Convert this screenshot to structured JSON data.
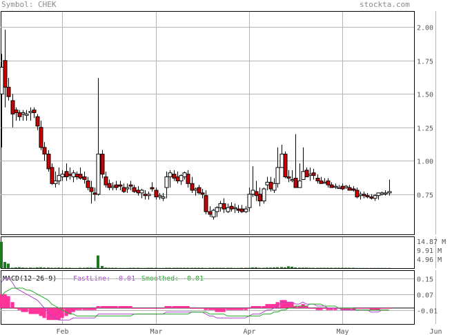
{
  "header": {
    "symbol_label": "Symbol: CHEK",
    "site_label": "stockta.com"
  },
  "colors": {
    "up": "#ffffff",
    "down": "#cc0000",
    "grid": "#b4b4b4",
    "volume": "#1e7a1e",
    "macd_hist": "#ff3399",
    "fastline": "#aa44cc",
    "smoothed": "#22aa22"
  },
  "chart_data": [
    {
      "type": "candlestick",
      "title": "Symbol: CHEK",
      "x_ticks": [
        "Feb",
        "Mar",
        "Apr",
        "May",
        "Jun"
      ],
      "y_ticks": [
        "2.00",
        "1.75",
        "1.50",
        "1.25",
        "1.00",
        "0.75"
      ],
      "ylim": [
        0.45,
        2.12
      ],
      "grid": true,
      "series": {
        "open": [
          1.5,
          1.75,
          1.55,
          1.45,
          1.38,
          1.36,
          1.35,
          1.34,
          1.36,
          1.38,
          1.33,
          1.25,
          1.1,
          1.05,
          0.95,
          0.83,
          0.85,
          0.88,
          0.92,
          0.9,
          0.88,
          0.9,
          0.9,
          0.88,
          0.85,
          0.8,
          0.76,
          0.75,
          1.05,
          0.88,
          0.83,
          0.8,
          0.82,
          0.82,
          0.8,
          0.79,
          0.82,
          0.8,
          0.78,
          0.76,
          0.75,
          0.74,
          0.8,
          0.78,
          0.73,
          0.72,
          0.8,
          0.88,
          0.9,
          0.88,
          0.85,
          0.88,
          0.9,
          0.83,
          0.78,
          0.8,
          0.76,
          0.74,
          0.62,
          0.58,
          0.62,
          0.65,
          0.68,
          0.62,
          0.66,
          0.65,
          0.64,
          0.64,
          0.62,
          0.65,
          0.75,
          0.77,
          0.75,
          0.7,
          0.82,
          0.84,
          0.78,
          0.83,
          0.95,
          1.05,
          0.88,
          0.86,
          0.87,
          0.8,
          0.86,
          0.93,
          0.89,
          0.91,
          0.87,
          0.85,
          0.84,
          0.85,
          0.82,
          0.81,
          0.8,
          0.81,
          0.8,
          0.8,
          0.79,
          0.78,
          0.74,
          0.75,
          0.74,
          0.73,
          0.72,
          0.74,
          0.75,
          0.76,
          0.76
        ],
        "high": [
          1.8,
          1.98,
          1.62,
          1.5,
          1.4,
          1.38,
          1.38,
          1.38,
          1.4,
          1.4,
          1.35,
          1.3,
          1.14,
          1.08,
          0.98,
          0.92,
          0.95,
          0.93,
          0.98,
          0.95,
          0.93,
          0.92,
          0.95,
          0.92,
          0.88,
          0.85,
          0.8,
          1.62,
          1.08,
          0.92,
          0.86,
          0.84,
          0.85,
          0.85,
          0.83,
          0.83,
          0.85,
          0.82,
          0.81,
          0.79,
          0.78,
          0.77,
          0.84,
          0.8,
          0.76,
          0.76,
          0.92,
          0.93,
          0.93,
          0.92,
          0.9,
          0.92,
          0.93,
          0.88,
          0.8,
          0.82,
          0.79,
          0.78,
          0.66,
          0.64,
          0.66,
          0.7,
          0.72,
          0.68,
          0.69,
          0.68,
          0.67,
          0.67,
          0.66,
          0.8,
          0.96,
          0.85,
          0.8,
          0.8,
          0.88,
          0.88,
          0.87,
          1.1,
          1.12,
          1.07,
          0.93,
          0.93,
          1.2,
          0.98,
          1.1,
          0.95,
          0.95,
          0.94,
          0.9,
          0.88,
          0.87,
          0.87,
          0.84,
          0.83,
          0.82,
          0.83,
          0.82,
          0.82,
          0.81,
          0.8,
          0.77,
          0.77,
          0.76,
          0.75,
          0.75,
          0.76,
          0.77,
          0.78,
          0.86
        ],
        "low": [
          1.1,
          1.4,
          1.45,
          1.25,
          1.3,
          1.3,
          1.3,
          1.3,
          1.3,
          1.32,
          1.23,
          1.08,
          1.0,
          0.92,
          0.82,
          0.8,
          0.82,
          0.85,
          0.85,
          0.86,
          0.84,
          0.86,
          0.86,
          0.83,
          0.78,
          0.68,
          0.7,
          0.74,
          0.87,
          0.8,
          0.78,
          0.78,
          0.78,
          0.78,
          0.76,
          0.76,
          0.78,
          0.76,
          0.74,
          0.72,
          0.71,
          0.71,
          0.77,
          0.71,
          0.71,
          0.7,
          0.72,
          0.8,
          0.85,
          0.83,
          0.82,
          0.86,
          0.8,
          0.76,
          0.74,
          0.75,
          0.72,
          0.6,
          0.58,
          0.56,
          0.58,
          0.62,
          0.61,
          0.61,
          0.62,
          0.61,
          0.61,
          0.61,
          0.61,
          0.62,
          0.73,
          0.7,
          0.66,
          0.68,
          0.78,
          0.77,
          0.76,
          0.8,
          0.95,
          0.87,
          0.84,
          0.84,
          0.8,
          0.8,
          0.86,
          0.88,
          0.85,
          0.86,
          0.83,
          0.83,
          0.83,
          0.8,
          0.8,
          0.79,
          0.79,
          0.78,
          0.79,
          0.78,
          0.77,
          0.72,
          0.71,
          0.72,
          0.72,
          0.71,
          0.7,
          0.71,
          0.74,
          0.74,
          0.74
        ],
        "close": [
          1.7,
          1.55,
          1.48,
          1.35,
          1.36,
          1.33,
          1.36,
          1.35,
          1.37,
          1.36,
          1.26,
          1.1,
          1.05,
          0.94,
          0.83,
          0.85,
          0.89,
          0.9,
          0.88,
          0.89,
          0.91,
          0.88,
          0.87,
          0.86,
          0.8,
          0.77,
          0.75,
          1.05,
          0.9,
          0.82,
          0.8,
          0.81,
          0.8,
          0.81,
          0.77,
          0.8,
          0.81,
          0.77,
          0.76,
          0.78,
          0.74,
          0.75,
          0.79,
          0.73,
          0.74,
          0.73,
          0.88,
          0.91,
          0.87,
          0.85,
          0.89,
          0.91,
          0.83,
          0.78,
          0.79,
          0.76,
          0.75,
          0.62,
          0.6,
          0.63,
          0.65,
          0.68,
          0.64,
          0.65,
          0.64,
          0.65,
          0.63,
          0.62,
          0.64,
          0.75,
          0.78,
          0.74,
          0.7,
          0.79,
          0.84,
          0.79,
          0.83,
          0.95,
          1.05,
          0.88,
          0.87,
          0.86,
          0.8,
          0.85,
          0.92,
          0.88,
          0.9,
          0.89,
          0.85,
          0.83,
          0.84,
          0.82,
          0.8,
          0.81,
          0.8,
          0.79,
          0.81,
          0.78,
          0.78,
          0.73,
          0.75,
          0.74,
          0.73,
          0.72,
          0.74,
          0.76,
          0.76,
          0.76,
          0.77
        ]
      },
      "x_tick_index": [
        17,
        43,
        69,
        95,
        121
      ],
      "candle_start_x": 2,
      "candle_step_x": 5.2
    },
    {
      "type": "bar",
      "name": "Volume",
      "y_ticks": [
        "14.87 M",
        "9.91 M",
        "4.96 M"
      ],
      "ylim": [
        0,
        17.5
      ],
      "values": [
        14.5,
        3.4,
        2.5,
        0.2,
        0.4,
        0.5,
        0.3,
        0.2,
        0.3,
        0.2,
        0.4,
        0.5,
        0.3,
        0.3,
        0.2,
        0.2,
        0.3,
        0.2,
        0.2,
        0.2,
        0.1,
        0.1,
        0.2,
        0.2,
        0.3,
        0.3,
        0.2,
        7.0,
        1.2,
        0.3,
        0.2,
        0.2,
        0.2,
        0.1,
        0.1,
        0.1,
        0.2,
        0.2,
        0.2,
        0.1,
        0.1,
        0.2,
        0.2,
        0.2,
        0.1,
        0.1,
        0.2,
        0.2,
        0.2,
        0.2,
        0.2,
        0.2,
        0.2,
        0.2,
        0.2,
        0.2,
        0.2,
        0.1,
        0.2,
        0.2,
        0.2,
        0.2,
        0.2,
        0.2,
        0.2,
        0.1,
        0.1,
        0.2,
        0.2,
        0.2,
        0.4,
        0.4,
        0.2,
        0.2,
        0.3,
        0.3,
        0.4,
        0.5,
        0.6,
        0.4,
        1.0,
        0.8,
        0.4,
        0.3,
        0.3,
        0.3,
        0.2,
        0.2,
        0.2,
        0.2,
        0.2,
        0.2,
        0.2,
        0.2,
        0.2,
        0.2,
        0.2,
        0.2,
        0.2,
        0.1,
        0.1,
        0.1,
        0.1,
        0.1,
        0.1,
        0.1,
        0.1,
        0.1,
        0.1
      ]
    },
    {
      "type": "line",
      "name": "MACD(12-26-9)",
      "legend": {
        "title": "MACD(12-26-9)",
        "fastline_label": "FastLine:",
        "fastline_value": "-0.01",
        "smoothed_label": "Smoothed:",
        "smoothed_value": "-0.01"
      },
      "y_ticks": [
        "0.15",
        "0.07",
        "-0.01"
      ],
      "ylim": [
        -0.08,
        0.19
      ],
      "fastline": [
        0.13,
        0.15,
        0.15,
        0.13,
        0.1,
        0.09,
        0.08,
        0.07,
        0.06,
        0.05,
        0.04,
        0.02,
        0.0,
        -0.02,
        -0.04,
        -0.05,
        -0.06,
        -0.06,
        -0.06,
        -0.06,
        -0.05,
        -0.05,
        -0.05,
        -0.05,
        -0.05,
        -0.05,
        -0.05,
        -0.03,
        -0.03,
        -0.03,
        -0.03,
        -0.03,
        -0.03,
        -0.03,
        -0.03,
        -0.03,
        -0.03,
        -0.03,
        -0.03,
        -0.03,
        -0.03,
        -0.03,
        -0.03,
        -0.03,
        -0.03,
        -0.03,
        -0.02,
        -0.02,
        -0.02,
        -0.02,
        -0.02,
        -0.02,
        -0.02,
        -0.02,
        -0.02,
        -0.02,
        -0.02,
        -0.03,
        -0.04,
        -0.04,
        -0.05,
        -0.05,
        -0.05,
        -0.05,
        -0.05,
        -0.05,
        -0.05,
        -0.05,
        -0.05,
        -0.04,
        -0.03,
        -0.03,
        -0.03,
        -0.02,
        -0.01,
        -0.01,
        0.0,
        0.01,
        0.03,
        0.03,
        0.03,
        0.03,
        0.02,
        0.02,
        0.03,
        0.02,
        0.02,
        0.02,
        0.01,
        0.01,
        0.01,
        0.0,
        0.0,
        0.0,
        0.0,
        -0.01,
        -0.01,
        -0.01,
        -0.01,
        -0.01,
        -0.01,
        -0.01,
        -0.01,
        -0.02,
        -0.02,
        -0.02,
        -0.01,
        -0.01,
        -0.01
      ],
      "smoothed": [
        0.06,
        0.08,
        0.09,
        0.1,
        0.1,
        0.1,
        0.1,
        0.09,
        0.09,
        0.08,
        0.07,
        0.06,
        0.05,
        0.04,
        0.02,
        0.01,
        0.0,
        -0.01,
        -0.02,
        -0.03,
        -0.03,
        -0.04,
        -0.04,
        -0.04,
        -0.04,
        -0.04,
        -0.04,
        -0.04,
        -0.04,
        -0.04,
        -0.04,
        -0.04,
        -0.04,
        -0.04,
        -0.04,
        -0.04,
        -0.04,
        -0.03,
        -0.03,
        -0.03,
        -0.03,
        -0.03,
        -0.03,
        -0.03,
        -0.03,
        -0.03,
        -0.03,
        -0.03,
        -0.03,
        -0.03,
        -0.03,
        -0.03,
        -0.03,
        -0.02,
        -0.02,
        -0.02,
        -0.02,
        -0.02,
        -0.03,
        -0.03,
        -0.03,
        -0.03,
        -0.03,
        -0.04,
        -0.04,
        -0.04,
        -0.04,
        -0.04,
        -0.04,
        -0.04,
        -0.04,
        -0.04,
        -0.04,
        -0.03,
        -0.03,
        -0.03,
        -0.02,
        -0.02,
        -0.01,
        -0.01,
        0.0,
        0.0,
        0.01,
        0.01,
        0.01,
        0.01,
        0.02,
        0.02,
        0.02,
        0.02,
        0.01,
        0.01,
        0.01,
        0.01,
        0.0,
        0.0,
        0.0,
        0.0,
        0.0,
        -0.01,
        -0.01,
        -0.01,
        -0.01,
        -0.01,
        -0.01,
        -0.01,
        -0.01,
        -0.01,
        -0.01
      ]
    }
  ]
}
